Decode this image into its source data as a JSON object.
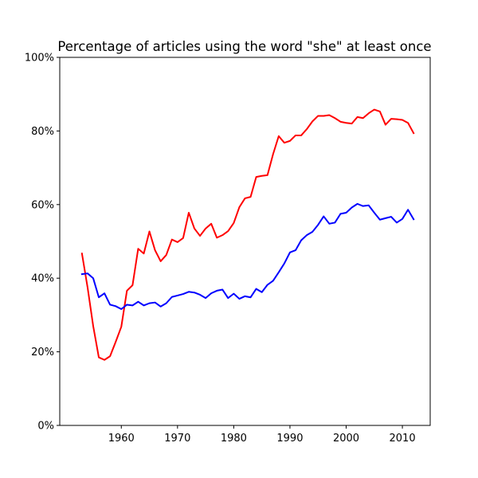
{
  "chart_data": {
    "type": "line",
    "title": "Percentage of articles using the word \"she\" at least once",
    "xlabel": "",
    "ylabel": "",
    "xlim": [
      1949.05,
      2014.95
    ],
    "ylim": [
      0,
      100
    ],
    "x_ticks": [
      1960,
      1970,
      1980,
      1990,
      2000,
      2010
    ],
    "x_tick_labels": [
      "1960",
      "1970",
      "1980",
      "1990",
      "2000",
      "2010"
    ],
    "y_ticks": [
      0,
      20,
      40,
      60,
      80,
      100
    ],
    "y_tick_labels": [
      "0%",
      "20%",
      "40%",
      "60%",
      "80%",
      "100%"
    ],
    "grid": false,
    "legend": "none",
    "x": [
      1953,
      1954,
      1955,
      1956,
      1957,
      1958,
      1959,
      1960,
      1961,
      1962,
      1963,
      1964,
      1965,
      1966,
      1967,
      1968,
      1969,
      1970,
      1971,
      1972,
      1973,
      1974,
      1975,
      1976,
      1977,
      1978,
      1979,
      1980,
      1981,
      1982,
      1983,
      1984,
      1985,
      1986,
      1987,
      1988,
      1989,
      1990,
      1991,
      1992,
      1993,
      1994,
      1995,
      1996,
      1997,
      1998,
      1999,
      2000,
      2001,
      2002,
      2003,
      2004,
      2005,
      2006,
      2007,
      2008,
      2009,
      2010,
      2011,
      2012
    ],
    "series": [
      {
        "color": "#ff0000",
        "values": [
          46.7,
          37.5,
          27.0,
          18.5,
          17.8,
          18.8,
          22.7,
          26.8,
          36.6,
          38.1,
          48.0,
          46.7,
          52.7,
          47.6,
          44.6,
          46.3,
          50.5,
          49.8,
          50.9,
          57.8,
          53.5,
          51.5,
          53.5,
          54.8,
          51.0,
          51.7,
          52.8,
          55.0,
          59.3,
          61.7,
          62.1,
          67.5,
          67.8,
          68.0,
          73.7,
          78.6,
          76.8,
          77.3,
          78.8,
          78.8,
          80.5,
          82.6,
          84.1,
          84.1,
          84.3,
          83.5,
          82.5,
          82.2,
          82.0,
          83.8,
          83.5,
          84.8,
          85.8,
          85.3,
          81.7,
          83.3,
          83.2,
          83.0,
          82.2,
          79.4
        ]
      },
      {
        "color": "#0000ff",
        "values": [
          41.1,
          41.3,
          40.0,
          34.8,
          35.9,
          32.8,
          32.4,
          31.6,
          32.8,
          32.6,
          33.6,
          32.6,
          33.2,
          33.4,
          32.3,
          33.2,
          34.9,
          35.3,
          35.7,
          36.3,
          36.1,
          35.5,
          34.6,
          35.9,
          36.6,
          36.9,
          34.6,
          35.8,
          34.4,
          35.1,
          34.8,
          37.1,
          36.2,
          38.2,
          39.3,
          41.6,
          44.0,
          47.0,
          47.6,
          50.3,
          51.7,
          52.6,
          54.5,
          56.8,
          54.8,
          55.1,
          57.5,
          57.8,
          59.2,
          60.2,
          59.6,
          59.8,
          57.8,
          55.9,
          56.3,
          56.7,
          55.1,
          56.1,
          58.6,
          56.0
        ]
      }
    ]
  }
}
